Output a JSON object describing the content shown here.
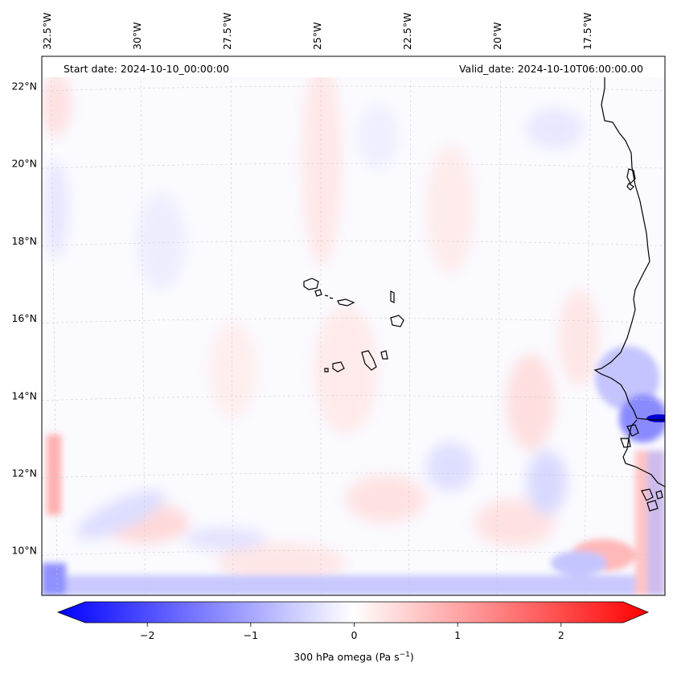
{
  "header": {
    "start_date": "Start date: 2024-10-10_00:00:00",
    "valid_date": "Valid_date: 2024-10-10T06:00:00.00"
  },
  "map": {
    "projection": "lambert-conformal",
    "lon_range": [
      -32.6,
      -16.2
    ],
    "lat_range": [
      8.8,
      22.8
    ],
    "gridlines": true,
    "lon_ticks": [
      {
        "value": -32.5,
        "label": "32.5°W"
      },
      {
        "value": -30,
        "label": "30°W"
      },
      {
        "value": -27.5,
        "label": "27.5°W"
      },
      {
        "value": -25,
        "label": "25°W"
      },
      {
        "value": -22.5,
        "label": "22.5°W"
      },
      {
        "value": -20,
        "label": "20°W"
      },
      {
        "value": -17.5,
        "label": "17.5°W"
      }
    ],
    "lat_ticks": [
      {
        "value": 22,
        "label": "22°N"
      },
      {
        "value": 20,
        "label": "20°N"
      },
      {
        "value": 18,
        "label": "18°N"
      },
      {
        "value": 16,
        "label": "16°N"
      },
      {
        "value": 14,
        "label": "14°N"
      },
      {
        "value": 12,
        "label": "12°N"
      },
      {
        "value": 10,
        "label": "10°N"
      }
    ],
    "features": [
      "Cape Verde islands",
      "West African coastline"
    ],
    "field": {
      "variable": "300 hPa omega",
      "notes": "mostly near-zero (-0.3..0.3), weak red/blue streaks; strong negative (blue) along southern and eastern edges and near African coast around 13°N"
    }
  },
  "colorbar": {
    "label": "300 hPa omega (Pa s",
    "label_exp": "−1",
    "label_close": ")",
    "range": [
      -2.6,
      2.6
    ],
    "extend": "both",
    "cmap": [
      "#0000ff",
      "#ffffff",
      "#ff0000"
    ],
    "ticks": [
      {
        "value": -2,
        "label": "−2"
      },
      {
        "value": -1,
        "label": "−1"
      },
      {
        "value": 0,
        "label": "0"
      },
      {
        "value": 1,
        "label": "1"
      },
      {
        "value": 2,
        "label": "2"
      }
    ]
  }
}
